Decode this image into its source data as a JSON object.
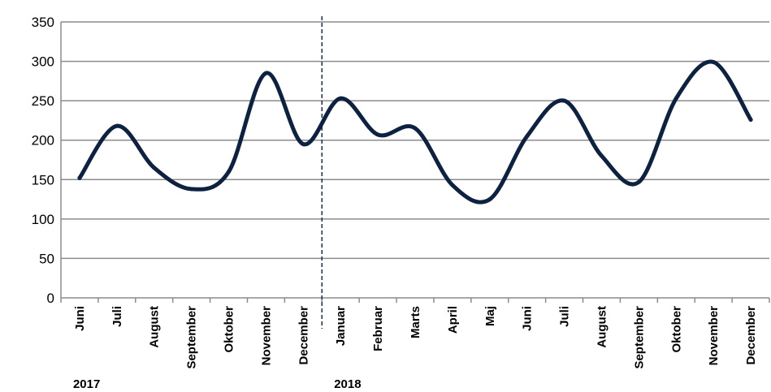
{
  "chart_data": {
    "type": "line",
    "title": "",
    "xlabel": "",
    "ylabel": "",
    "ylim": [
      0,
      350
    ],
    "yticks": [
      0,
      50,
      100,
      150,
      200,
      250,
      300,
      350
    ],
    "grid": true,
    "legend": "none",
    "categories": [
      "Juni",
      "Juli",
      "August",
      "September",
      "Oktober",
      "November",
      "December",
      "Januar",
      "Februar",
      "Marts",
      "April",
      "Maj",
      "Juni",
      "Juli",
      "August",
      "September",
      "Oktober",
      "November",
      "December"
    ],
    "year_labels": [
      {
        "text": "2017",
        "start_index": 0
      },
      {
        "text": "2018",
        "start_index": 7
      }
    ],
    "year_divider_between": [
      6,
      7
    ],
    "series": [
      {
        "values": [
          152,
          218,
          165,
          138,
          160,
          285,
          195,
          253,
          207,
          215,
          143,
          125,
          205,
          250,
          180,
          147,
          253,
          299,
          226
        ]
      }
    ],
    "colors": {
      "line": "#0d2240",
      "grid": "#8c8c8c",
      "axis": "#8c8c8c",
      "divider": "#1a2e4f"
    }
  }
}
